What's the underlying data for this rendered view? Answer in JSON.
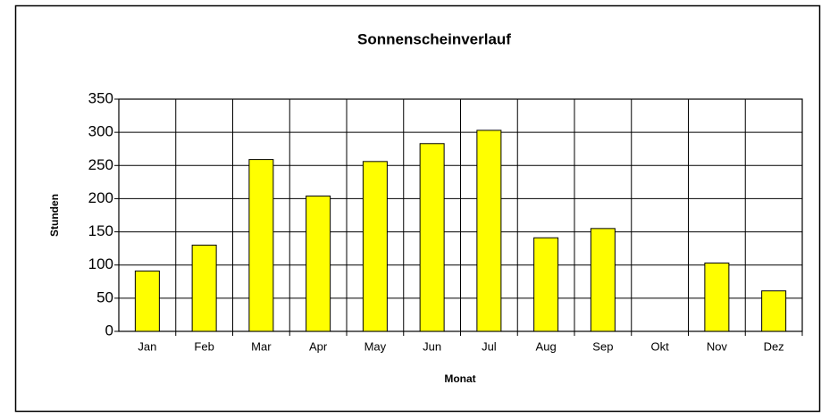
{
  "chart_data": {
    "type": "bar",
    "title": "Sonnenscheinverlauf",
    "x_label": "Monat",
    "y_label": "Stunden",
    "categories": [
      "Jan",
      "Feb",
      "Mar",
      "Apr",
      "May",
      "Jun",
      "Jul",
      "Aug",
      "Sep",
      "Okt",
      "Nov",
      "Dez"
    ],
    "values": [
      91,
      130,
      259,
      204,
      256,
      283,
      303,
      141,
      155,
      null,
      103,
      61
    ],
    "color": "#ffff00",
    "ylim": [
      0,
      350
    ],
    "yticks": [
      0,
      50,
      100,
      150,
      200,
      250,
      300,
      350
    ],
    "grid": true
  }
}
